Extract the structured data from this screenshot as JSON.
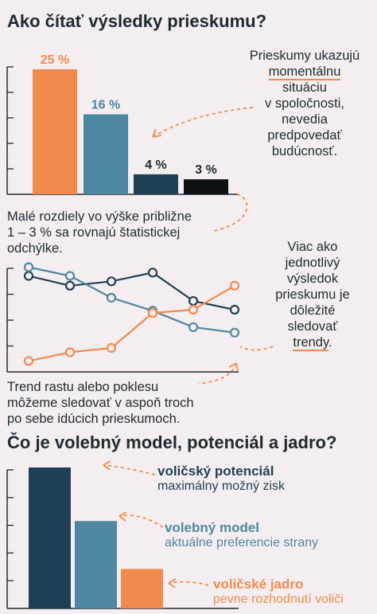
{
  "section1": {
    "title": "Ako čítať výsledky prieskumu?",
    "note_right": {
      "pre": "Prieskumy ukazujú",
      "highlight": "momentálnu",
      "post_lines": [
        "situáciu",
        "v spoločnosti,",
        "nevedia",
        "predpovedať",
        "budúcnosť."
      ]
    },
    "note_bottom": [
      "Malé rozdiely vo výške približne",
      "1 – 3 % sa rovnajú štatistickej",
      "odchýlke."
    ]
  },
  "section2": {
    "note_right": {
      "lines": [
        "Viac ako",
        "jednotlivý",
        "výsledok",
        "prieskumu je",
        "dôležité",
        "sledovať"
      ],
      "highlight": "trendy",
      "suffix": "."
    },
    "note_bottom": [
      "Trend rastu alebo poklesu",
      "môžeme sledovať v aspoň troch",
      "po sebe idúcich prieskumoch."
    ]
  },
  "section3": {
    "title": "Čo je volebný model, potenciál a jadro?",
    "labels": [
      {
        "title": "voličský potenciál",
        "subtitle": "maximálny možný zisk",
        "color": "#1f3f55"
      },
      {
        "title": "volebný model",
        "subtitle": "aktuálne preferencie strany",
        "color": "#4f86a1"
      },
      {
        "title": "voličské jadro",
        "subtitle": "pevne rozhodnutí voliči",
        "color": "#f28a4e"
      }
    ]
  },
  "colors": {
    "orange": "#f28a4e",
    "blue": "#4f86a1",
    "navy": "#1f3f55",
    "black": "#0d1114",
    "ink": "#1e2a33"
  },
  "chart_data": [
    {
      "type": "bar",
      "categories": [
        "",
        "",
        "",
        ""
      ],
      "values": [
        25,
        16,
        4,
        3
      ],
      "data_labels": [
        "25 %",
        "16 %",
        "4 %",
        "3 %"
      ],
      "colors": [
        "#f28a4e",
        "#4f86a1",
        "#1f3f55",
        "#0d1114"
      ],
      "ylim": [
        0,
        30
      ],
      "grid": false
    },
    {
      "type": "line",
      "x": [
        1,
        2,
        3,
        4,
        5,
        6
      ],
      "series": [
        {
          "values": [
            8.8,
            7.9,
            8.3,
            9.1,
            6.5,
            5.7
          ],
          "color": "#1f3f55"
        },
        {
          "values": [
            9.6,
            8.8,
            6.8,
            5.6,
            4.1,
            3.6
          ],
          "color": "#4f86a1"
        },
        {
          "values": [
            1.0,
            1.8,
            2.2,
            5.4,
            5.7,
            7.9
          ],
          "color": "#f28a4e"
        }
      ],
      "ylim": [
        0,
        10
      ],
      "grid": false
    },
    {
      "type": "bar",
      "categories": [
        "voličský potenciál",
        "volebný model",
        "voličské jadro"
      ],
      "values": [
        100,
        62,
        28
      ],
      "colors": [
        "#1f3f55",
        "#4f86a1",
        "#f28a4e"
      ],
      "ylim": [
        0,
        105
      ],
      "grid": false
    }
  ]
}
